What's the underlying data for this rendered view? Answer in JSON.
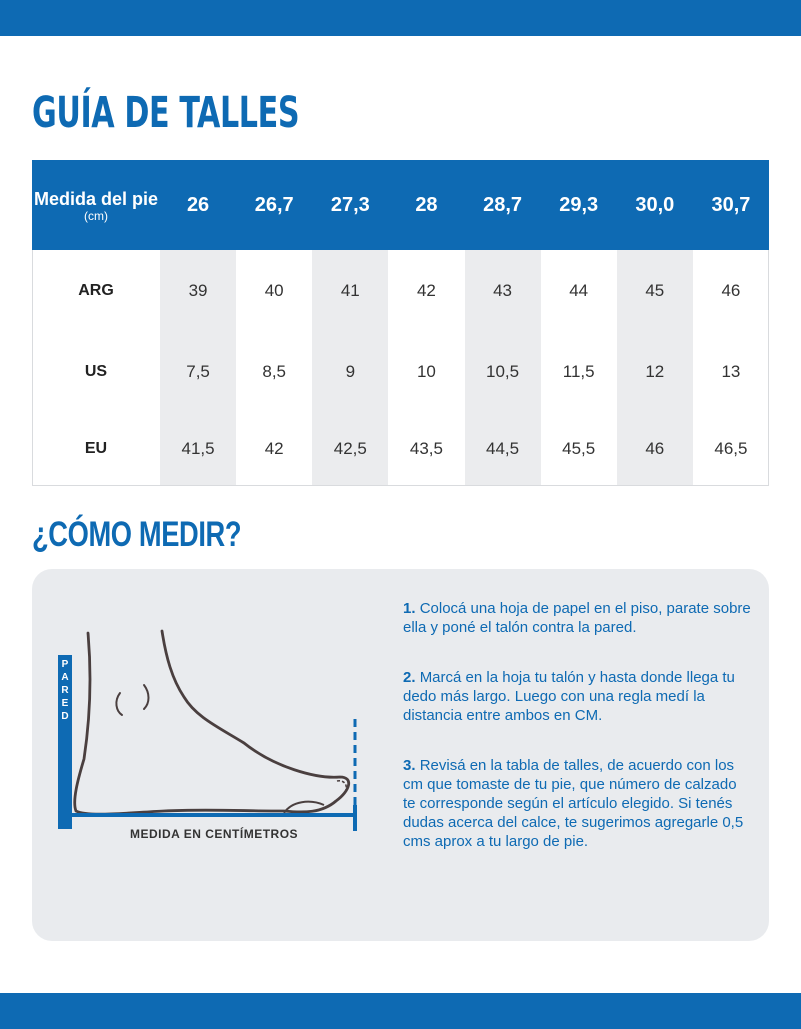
{
  "title": "GUÍA DE TALLES",
  "table": {
    "header_label": "Medida del pie",
    "header_unit": "(cm)",
    "columns": [
      "26",
      "26,7",
      "27,3",
      "28",
      "28,7",
      "29,3",
      "30,0",
      "30,7"
    ],
    "rows": [
      {
        "label": "ARG",
        "values": [
          "39",
          "40",
          "41",
          "42",
          "43",
          "44",
          "45",
          "46"
        ]
      },
      {
        "label": "US",
        "values": [
          "7,5",
          "8,5",
          "9",
          "10",
          "10,5",
          "11,5",
          "12",
          "13"
        ]
      },
      {
        "label": "EU",
        "values": [
          "41,5",
          "42",
          "42,5",
          "43,5",
          "44,5",
          "45,5",
          "46",
          "46,5"
        ]
      }
    ]
  },
  "how_to": {
    "title": "¿CÓMO MEDIR?",
    "wall_label": "PARED",
    "measure_label": "MEDIDA EN CENTÍMETROS",
    "steps": [
      {
        "num": "1.",
        "text": "Colocá una hoja de papel en el piso, parate sobre ella y poné el talón contra la pared."
      },
      {
        "num": "2.",
        "text": "Marcá en la hoja tu talón y hasta donde llega tu dedo más largo. Luego con una regla medí la distancia entre ambos en CM."
      },
      {
        "num": "3.",
        "text": "Revisá en la tabla de talles, de acuerdo con los cm que tomaste de tu pie, que número de calzado te corresponde según el artículo elegido. Si tenés dudas acerca del calce, te sugerimos agregarle 0,5 cms aprox a tu largo de pie."
      }
    ]
  },
  "colors": {
    "brand_blue": "#0e6ab3",
    "panel_gray": "#e9ebee",
    "column_shade": "#ebecee"
  }
}
